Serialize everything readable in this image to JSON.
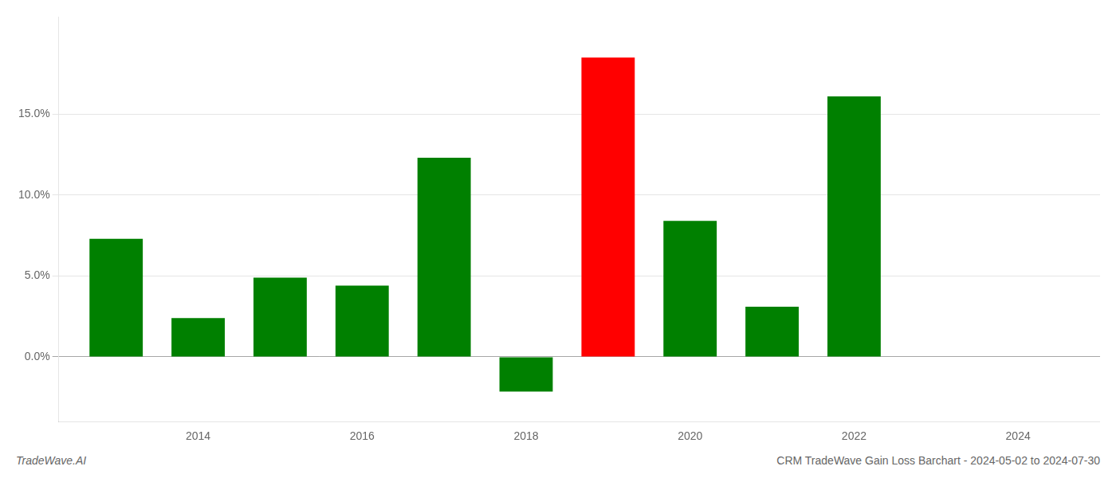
{
  "chart_data": {
    "type": "bar",
    "x": [
      2013,
      2014,
      2015,
      2016,
      2017,
      2018,
      2019,
      2020,
      2021,
      2022
    ],
    "values": [
      7.3,
      2.4,
      4.9,
      4.4,
      12.3,
      -2.15,
      18.5,
      8.4,
      3.1,
      16.1
    ],
    "colors": [
      "#008000",
      "#008000",
      "#008000",
      "#008000",
      "#008000",
      "#008000",
      "#ff0000",
      "#008000",
      "#008000",
      "#008000"
    ],
    "xlim": [
      2012.3,
      2025.0
    ],
    "xticks": [
      2014,
      2016,
      2018,
      2020,
      2022,
      2024
    ],
    "ylim": [
      -4.0,
      21.0
    ],
    "yticks": [
      {
        "value": 0.0,
        "label": "0.0%"
      },
      {
        "value": 5.0,
        "label": "5.0%"
      },
      {
        "value": 10.0,
        "label": "10.0%"
      },
      {
        "value": 15.0,
        "label": "15.0%"
      }
    ],
    "grid": true,
    "annotations": [
      "TradeWave.AI",
      "CRM TradeWave Gain Loss Barchart - 2024-05-02 to 2024-07-30"
    ]
  }
}
